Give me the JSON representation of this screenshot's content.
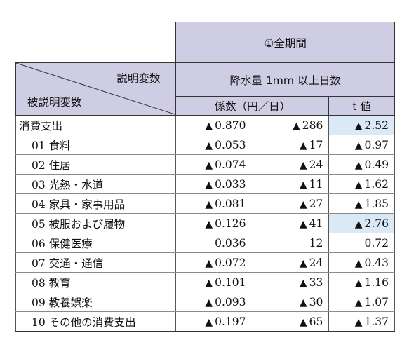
{
  "header": {
    "period": "①全期間",
    "explanatory_label": "説明変数",
    "dependent_label": "被説明変数",
    "explanatory_var": "降水量 1mm 以上日数",
    "coef_header": "係数（円／日）",
    "t_header": "t 値"
  },
  "neg_mark": "▲",
  "rows": [
    {
      "name": "消費支出",
      "indent": false,
      "c1_neg": true,
      "c1": "0.870",
      "c2_neg": true,
      "c2": "286",
      "t_neg": true,
      "t": "2.52",
      "highlight": true
    },
    {
      "name": "01 食料",
      "indent": true,
      "c1_neg": true,
      "c1": "0.053",
      "c2_neg": true,
      "c2": "17",
      "t_neg": true,
      "t": "0.97",
      "highlight": false
    },
    {
      "name": "02 住居",
      "indent": true,
      "c1_neg": true,
      "c1": "0.074",
      "c2_neg": true,
      "c2": "24",
      "t_neg": true,
      "t": "0.49",
      "highlight": false
    },
    {
      "name": "03 光熱・水道",
      "indent": true,
      "c1_neg": true,
      "c1": "0.033",
      "c2_neg": true,
      "c2": "11",
      "t_neg": true,
      "t": "1.62",
      "highlight": false
    },
    {
      "name": "04 家具・家事用品",
      "indent": true,
      "c1_neg": true,
      "c1": "0.081",
      "c2_neg": true,
      "c2": "27",
      "t_neg": true,
      "t": "1.85",
      "highlight": false
    },
    {
      "name": "05 被服および履物",
      "indent": true,
      "c1_neg": true,
      "c1": "0.126",
      "c2_neg": true,
      "c2": "41",
      "t_neg": true,
      "t": "2.76",
      "highlight": true
    },
    {
      "name": "06 保健医療",
      "indent": true,
      "c1_neg": false,
      "c1": "0.036",
      "c2_neg": false,
      "c2": "12",
      "t_neg": false,
      "t": "0.72",
      "highlight": false
    },
    {
      "name": "07 交通・通信",
      "indent": true,
      "c1_neg": true,
      "c1": "0.072",
      "c2_neg": true,
      "c2": "24",
      "t_neg": true,
      "t": "0.43",
      "highlight": false
    },
    {
      "name": "08 教育",
      "indent": true,
      "c1_neg": true,
      "c1": "0.101",
      "c2_neg": true,
      "c2": "33",
      "t_neg": true,
      "t": "1.16",
      "highlight": false
    },
    {
      "name": "09 教養娯楽",
      "indent": true,
      "c1_neg": true,
      "c1": "0.093",
      "c2_neg": true,
      "c2": "30",
      "t_neg": true,
      "t": "1.07",
      "highlight": false
    },
    {
      "name": "10 その他の消費支出",
      "indent": true,
      "c1_neg": true,
      "c1": "0.197",
      "c2_neg": true,
      "c2": "65",
      "t_neg": true,
      "t": "1.37",
      "highlight": false
    }
  ]
}
